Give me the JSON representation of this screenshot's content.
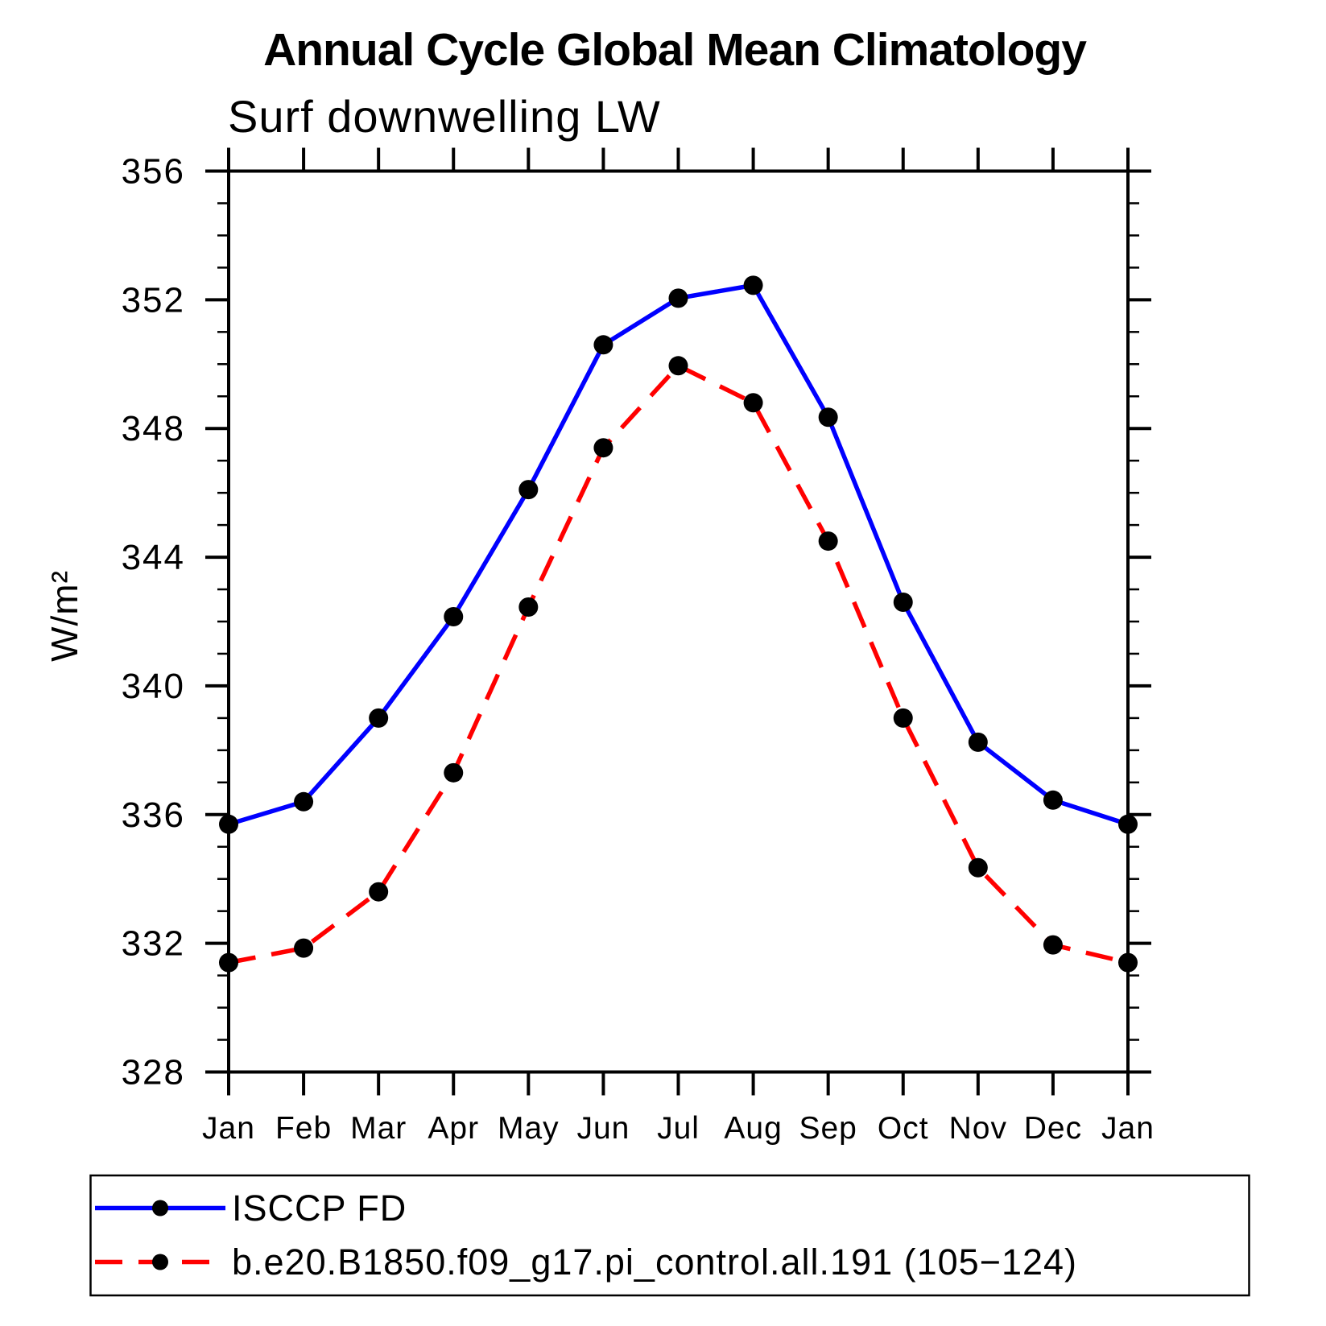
{
  "title": "Annual Cycle Global Mean Climatology",
  "subtitle": "Surf downwelling LW",
  "chart_data": {
    "type": "line",
    "title": "Annual Cycle Global Mean Climatology",
    "subtitle": "Surf downwelling LW",
    "ylabel": "W/m²",
    "xlabel": "",
    "x_categories": [
      "Jan",
      "Feb",
      "Mar",
      "Apr",
      "May",
      "Jun",
      "Jul",
      "Aug",
      "Sep",
      "Oct",
      "Nov",
      "Dec",
      "Jan"
    ],
    "ylim": [
      328,
      356
    ],
    "ytick_labels": [
      "328",
      "332",
      "336",
      "340",
      "344",
      "348",
      "352",
      "356"
    ],
    "ytick_values": [
      328,
      332,
      336,
      340,
      344,
      348,
      352,
      356
    ],
    "yminor_interval": 1,
    "grid": false,
    "legend_position": "bottom-left-box",
    "series": [
      {
        "name": "ISCCP FD",
        "line_color": "#0000ff",
        "line_style": "solid",
        "marker": "filled-circle",
        "marker_color": "#000000",
        "values": [
          335.7,
          336.4,
          339.0,
          342.15,
          346.1,
          350.6,
          352.05,
          352.45,
          348.35,
          342.6,
          338.25,
          336.45,
          335.7
        ]
      },
      {
        "name": "b.e20.B1850.f09_g17.pi_control.all.191 (105−124)",
        "line_color": "#ff0000",
        "line_style": "dashed",
        "marker": "filled-circle",
        "marker_color": "#000000",
        "values": [
          331.4,
          331.85,
          333.6,
          337.3,
          342.45,
          347.4,
          349.95,
          348.8,
          344.5,
          339.0,
          334.35,
          331.95,
          331.4
        ]
      }
    ]
  },
  "colors": {
    "axis": "#000000",
    "background": "#ffffff",
    "obs_line": "#0000ff",
    "model_line": "#ff0000",
    "marker": "#000000"
  }
}
